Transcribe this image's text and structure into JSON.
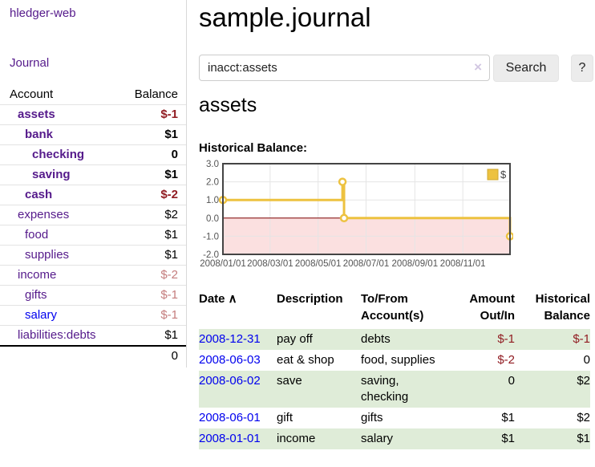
{
  "app": {
    "brand": "hledger-web"
  },
  "nav": {
    "journal_label": "Journal"
  },
  "sidebar": {
    "columns": {
      "account": "Account",
      "balance": "Balance"
    },
    "accounts": [
      {
        "name": "assets",
        "indent": 0,
        "bold": true,
        "balance": "$-1",
        "balance_style": "neg"
      },
      {
        "name": "bank",
        "indent": 1,
        "bold": true,
        "balance": "$1",
        "balance_style": "pos"
      },
      {
        "name": "checking",
        "indent": 2,
        "bold": true,
        "balance": "0",
        "balance_style": "pos"
      },
      {
        "name": "saving",
        "indent": 2,
        "bold": true,
        "balance": "$1",
        "balance_style": "pos"
      },
      {
        "name": "cash",
        "indent": 1,
        "bold": true,
        "balance": "$-2",
        "balance_style": "neg"
      },
      {
        "name": "expenses",
        "indent": 0,
        "bold": false,
        "balance": "$2",
        "balance_style": "pos"
      },
      {
        "name": "food",
        "indent": 1,
        "bold": false,
        "balance": "$1",
        "balance_style": "pos"
      },
      {
        "name": "supplies",
        "indent": 1,
        "bold": false,
        "balance": "$1",
        "balance_style": "pos"
      },
      {
        "name": "income",
        "indent": 0,
        "bold": false,
        "balance": "$-2",
        "balance_style": "neg-soft"
      },
      {
        "name": "gifts",
        "indent": 1,
        "bold": false,
        "balance": "$-1",
        "balance_style": "neg-soft"
      },
      {
        "name": "salary",
        "indent": 1,
        "bold": false,
        "balance": "$-1",
        "balance_style": "neg-soft",
        "link_style": "blue"
      },
      {
        "name": "liabilities:debts",
        "indent": 0,
        "bold": false,
        "balance": "$1",
        "balance_style": "pos"
      }
    ],
    "total": "0"
  },
  "header": {
    "title": "sample.journal"
  },
  "search": {
    "value": "inacct:assets",
    "clear_icon": "×",
    "button_label": "Search",
    "help_label": "?"
  },
  "account_page": {
    "title": "assets",
    "chart_label": "Historical Balance:"
  },
  "chart_data": {
    "type": "line",
    "step": true,
    "series": [
      {
        "name": "$",
        "color": "#edc240",
        "x": [
          "2008-01-01",
          "2008-06-01",
          "2008-06-03",
          "2008-12-31"
        ],
        "y": [
          1,
          2,
          0,
          -1
        ]
      }
    ],
    "xlim": [
      "2008-01-01",
      "2008-12-31"
    ],
    "ylim": [
      -2,
      3
    ],
    "x_ticks": [
      "2008/01/01",
      "2008/03/01",
      "2008/05/01",
      "2008/07/01",
      "2008/09/01",
      "2008/11/01"
    ],
    "y_ticks": [
      3.0,
      2.0,
      1.0,
      0.0,
      -1.0,
      -2.0
    ],
    "grid": true,
    "negative_fill": "#fbe0e0",
    "zero_line_color": "#800000",
    "border_color": "#444444",
    "tick_color": "#545454",
    "legend": {
      "label": "$",
      "position": "top-right"
    }
  },
  "register": {
    "sort_arrow": "∧",
    "columns": [
      "Date",
      "Description",
      "To/From Account(s)",
      "Amount Out/In",
      "Historical Balance"
    ],
    "rows": [
      {
        "date": "2008-12-31",
        "description": "pay off",
        "accounts": "debts",
        "amount": "$-1",
        "amount_style": "neg",
        "balance": "$-1",
        "balance_style": "neg",
        "green": true
      },
      {
        "date": "2008-06-03",
        "description": "eat & shop",
        "accounts": "food, supplies",
        "amount": "$-2",
        "amount_style": "neg",
        "balance": "0",
        "balance_style": "pos",
        "green": false
      },
      {
        "date": "2008-06-02",
        "description": "save",
        "accounts": "saving, checking",
        "amount": "0",
        "amount_style": "pos",
        "balance": "$2",
        "balance_style": "pos",
        "green": true
      },
      {
        "date": "2008-06-01",
        "description": "gift",
        "accounts": "gifts",
        "amount": "$1",
        "amount_style": "pos",
        "balance": "$2",
        "balance_style": "pos",
        "green": false
      },
      {
        "date": "2008-01-01",
        "description": "income",
        "accounts": "salary",
        "amount": "$1",
        "amount_style": "pos",
        "balance": "$1",
        "balance_style": "pos",
        "green": true
      }
    ]
  }
}
